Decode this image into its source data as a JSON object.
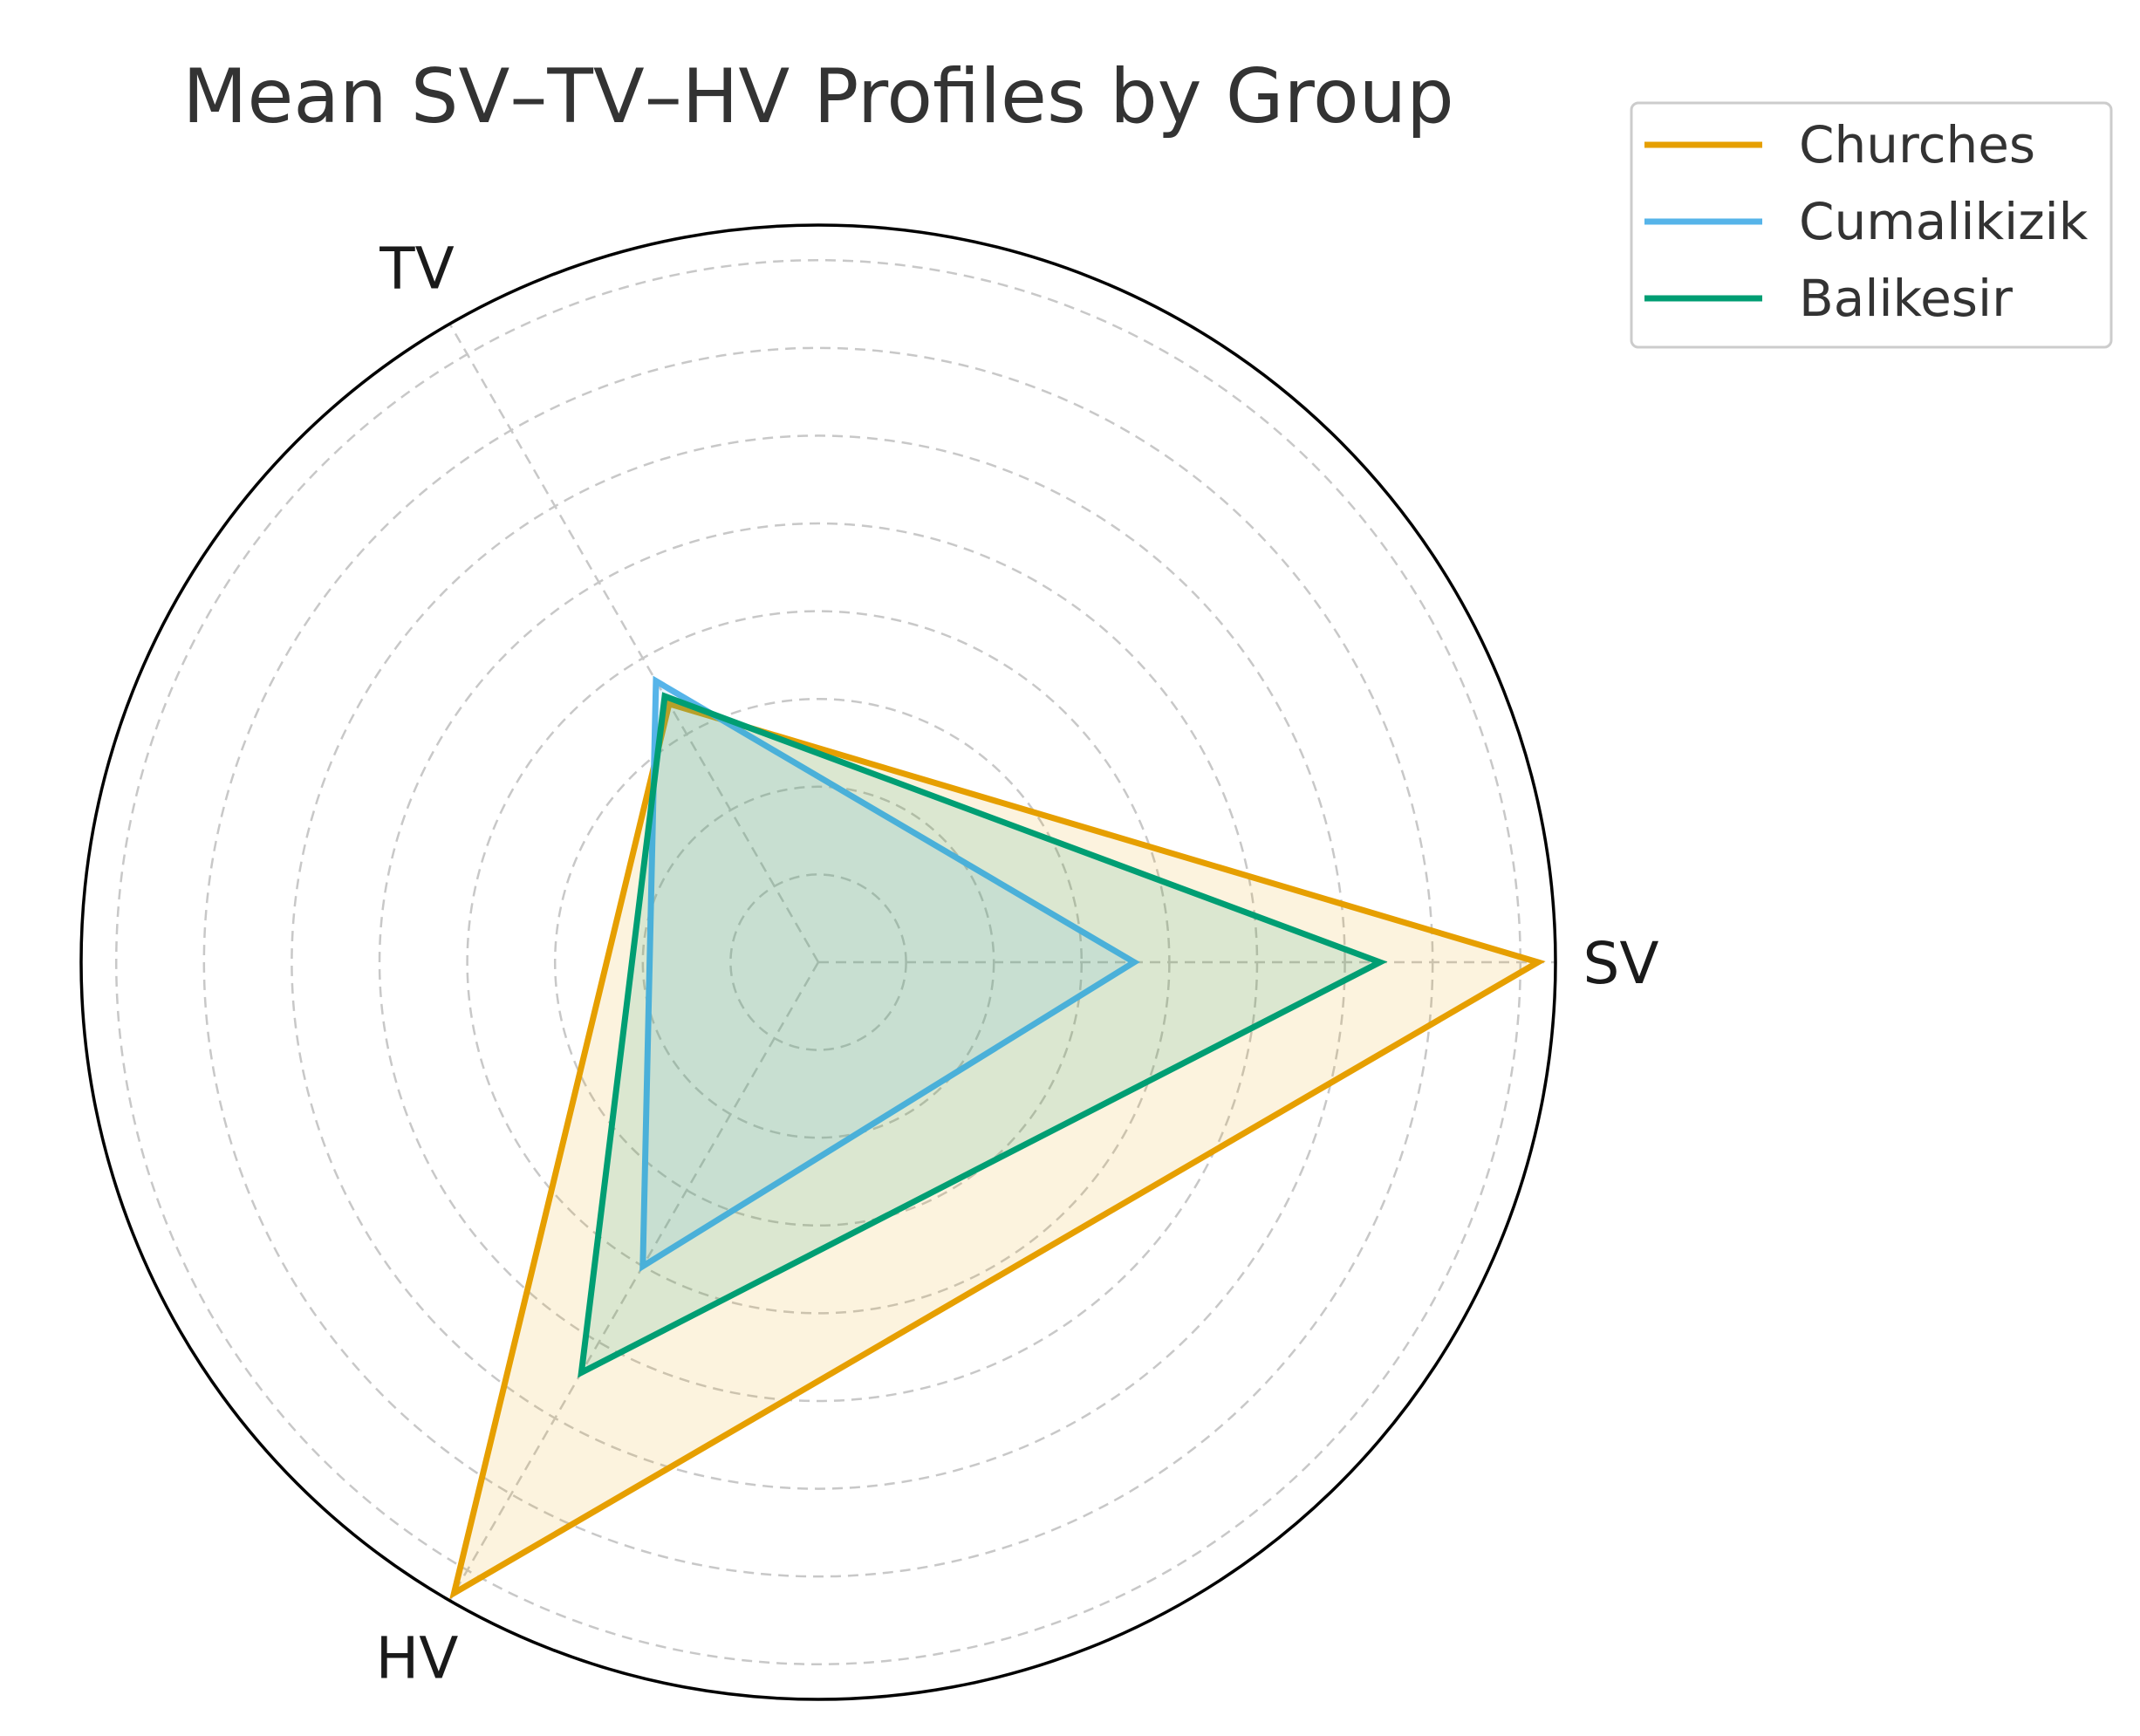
{
  "chart_data": {
    "type": "radar",
    "title": "Mean SV–TV–HV Profiles by Group",
    "axes": [
      "SV",
      "TV",
      "HV"
    ],
    "rlim": [
      0,
      8.4
    ],
    "rings": [
      1,
      2,
      3,
      4,
      5,
      6,
      7,
      8
    ],
    "grid": true,
    "legend_position": "top-right",
    "series": [
      {
        "name": "Churches",
        "color": "#E69F00",
        "values": [
          8.2,
          3.4,
          8.3
        ]
      },
      {
        "name": "Cumalikizik",
        "color": "#56B4E9",
        "values": [
          3.6,
          3.7,
          4.0
        ]
      },
      {
        "name": "Balikesir",
        "color": "#009E73",
        "values": [
          6.4,
          3.5,
          5.4
        ]
      }
    ]
  }
}
